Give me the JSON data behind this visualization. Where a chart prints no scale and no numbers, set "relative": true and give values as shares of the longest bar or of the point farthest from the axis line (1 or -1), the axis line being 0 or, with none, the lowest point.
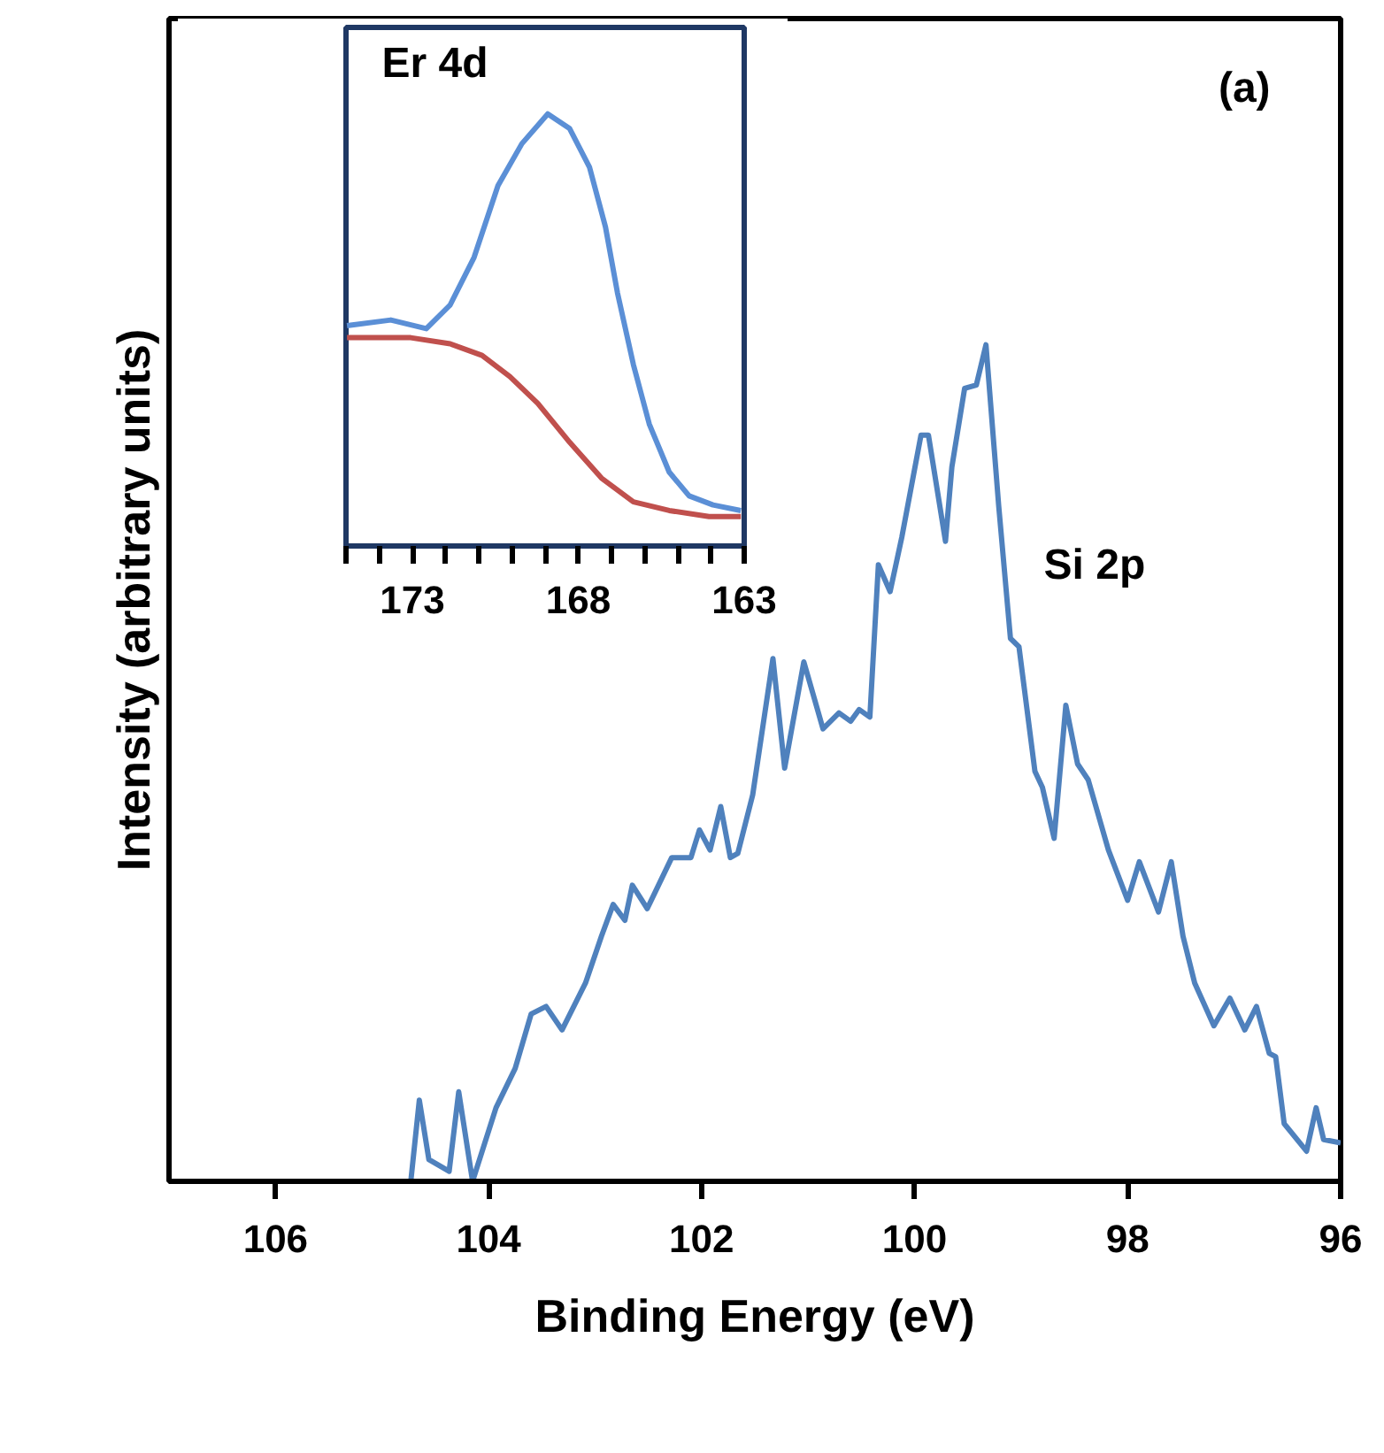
{
  "chart_data": [
    {
      "type": "line",
      "xlabel": "Binding Energy (eV)",
      "ylabel": "Intensity (arbitrary units)",
      "relative": true,
      "xlim": [
        107,
        96
      ],
      "xticks": [
        106,
        104,
        102,
        100,
        98,
        96
      ],
      "grid": false,
      "marker": "none",
      "line_style": "solid",
      "annotations": [
        "(a)",
        "Si 2p"
      ],
      "series": [
        {
          "color": "#4f81bd",
          "x": [
            104.73,
            104.65,
            104.56,
            104.37,
            104.28,
            104.15,
            103.93,
            103.75,
            103.6,
            103.46,
            103.31,
            103.09,
            102.94,
            102.83,
            102.72,
            102.65,
            102.51,
            102.28,
            102.1,
            102.02,
            101.92,
            101.82,
            101.73,
            101.66,
            101.52,
            101.33,
            101.22,
            101.04,
            100.86,
            100.71,
            100.6,
            100.52,
            100.42,
            100.34,
            100.23,
            100.12,
            99.94,
            99.87,
            99.71,
            99.65,
            99.53,
            99.42,
            99.33,
            99.21,
            99.1,
            99.02,
            98.87,
            98.8,
            98.69,
            98.58,
            98.47,
            98.37,
            98.18,
            98.0,
            97.89,
            97.71,
            97.59,
            97.48,
            97.37,
            97.19,
            97.04,
            96.9,
            96.79,
            96.67,
            96.61,
            96.53,
            96.32,
            96.23,
            96.16,
            96.0
          ],
          "values": [
            0.0,
            0.097,
            0.026,
            0.012,
            0.107,
            0.0,
            0.088,
            0.135,
            0.2,
            0.209,
            0.181,
            0.237,
            0.293,
            0.331,
            0.312,
            0.354,
            0.326,
            0.387,
            0.387,
            0.42,
            0.396,
            0.448,
            0.387,
            0.392,
            0.462,
            0.625,
            0.494,
            0.621,
            0.541,
            0.56,
            0.55,
            0.564,
            0.555,
            0.737,
            0.705,
            0.77,
            0.892,
            0.892,
            0.765,
            0.854,
            0.948,
            0.952,
            1.0,
            0.807,
            0.649,
            0.639,
            0.49,
            0.471,
            0.41,
            0.569,
            0.499,
            0.48,
            0.396,
            0.336,
            0.382,
            0.322,
            0.382,
            0.293,
            0.237,
            0.186,
            0.219,
            0.181,
            0.209,
            0.153,
            0.149,
            0.069,
            0.036,
            0.088,
            0.05,
            0.046
          ]
        }
      ]
    },
    {
      "type": "line",
      "title": "Er 4d",
      "relative": true,
      "xlim": [
        175,
        163
      ],
      "xticks": [
        {
          "value": 175,
          "label": null
        },
        {
          "value": 174,
          "label": null
        },
        173,
        {
          "value": 172,
          "label": null
        },
        {
          "value": 171,
          "label": null
        },
        {
          "value": 170,
          "label": null
        },
        {
          "value": 169,
          "label": null
        },
        168,
        {
          "value": 167,
          "label": null
        },
        {
          "value": 166,
          "label": null
        },
        {
          "value": 165,
          "label": null
        },
        {
          "value": 164,
          "label": null
        },
        163
      ],
      "grid": false,
      "marker": "none",
      "line_style": "solid",
      "series": [
        {
          "color": "#5b8fd6",
          "x": [
            174.97,
            173.65,
            172.58,
            171.86,
            171.14,
            170.42,
            169.7,
            168.92,
            168.26,
            167.66,
            167.18,
            166.82,
            166.34,
            165.86,
            165.26,
            164.66,
            163.94,
            163.1
          ],
          "values": [
            0.51,
            0.523,
            0.503,
            0.558,
            0.668,
            0.834,
            0.931,
            1.0,
            0.966,
            0.876,
            0.738,
            0.586,
            0.42,
            0.282,
            0.171,
            0.116,
            0.095,
            0.082
          ]
        },
        {
          "color": "#c0504d",
          "x": [
            174.97,
            173.05,
            171.86,
            170.9,
            170.06,
            169.22,
            168.26,
            167.3,
            166.34,
            165.26,
            164.06,
            163.1
          ],
          "values": [
            0.482,
            0.482,
            0.468,
            0.441,
            0.392,
            0.33,
            0.24,
            0.157,
            0.102,
            0.082,
            0.068,
            0.068
          ]
        }
      ]
    }
  ]
}
